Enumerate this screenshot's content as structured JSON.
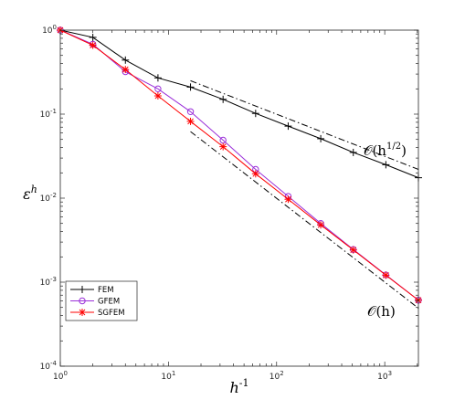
{
  "chart_data": {
    "type": "line",
    "xscale": "log",
    "yscale": "log",
    "xlim": [
      1,
      2048
    ],
    "ylim": [
      0.0001,
      1
    ],
    "xlabel_base": "h",
    "xlabel_exp": "-1",
    "ylabel_base": "ε",
    "ylabel_exp": "h",
    "x_ticks": [
      {
        "value": 1,
        "base": "10",
        "exp": "0"
      },
      {
        "value": 10,
        "base": "10",
        "exp": "1"
      },
      {
        "value": 100,
        "base": "10",
        "exp": "2"
      },
      {
        "value": 1000,
        "base": "10",
        "exp": "3"
      }
    ],
    "y_ticks": [
      {
        "value": 0.0001,
        "base": "10",
        "exp": "-4"
      },
      {
        "value": 0.001,
        "base": "10",
        "exp": "-3"
      },
      {
        "value": 0.01,
        "base": "10",
        "exp": "-2"
      },
      {
        "value": 0.1,
        "base": "10",
        "exp": "-1"
      },
      {
        "value": 1,
        "base": "10",
        "exp": "0"
      }
    ],
    "x": [
      1,
      2,
      4,
      8,
      16,
      32,
      64,
      128,
      256,
      512,
      1024,
      2048
    ],
    "series": [
      {
        "name": "FEM",
        "color": "#000000",
        "marker": "plus",
        "values": [
          1.0,
          0.82,
          0.44,
          0.27,
          0.21,
          0.15,
          0.102,
          0.072,
          0.051,
          0.035,
          0.025,
          0.0175
        ]
      },
      {
        "name": "GFEM",
        "color": "#9b30d9",
        "marker": "circle",
        "values": [
          1.0,
          0.68,
          0.32,
          0.2,
          0.107,
          0.049,
          0.022,
          0.0105,
          0.005,
          0.00245,
          0.00122,
          0.00061
        ]
      },
      {
        "name": "SGFEM",
        "color": "#ff0000",
        "marker": "star",
        "values": [
          1.0,
          0.66,
          0.34,
          0.165,
          0.082,
          0.041,
          0.0195,
          0.0097,
          0.0048,
          0.00242,
          0.00121,
          0.00061
        ]
      }
    ],
    "reference_lines": [
      {
        "label": "O(h^{1/2})",
        "color": "#000000",
        "style": "dash-dot",
        "x": [
          16,
          2048
        ],
        "y": [
          0.25,
          0.022
        ]
      },
      {
        "label": "O(h)",
        "color": "#000000",
        "style": "dash-dot",
        "x": [
          16,
          2048
        ],
        "y": [
          0.062,
          0.00049
        ]
      }
    ],
    "annotations": [
      {
        "prefix": "𝒪(h",
        "sup": "1/2",
        "suffix": ")"
      },
      {
        "prefix": "𝒪(h)",
        "sup": "",
        "suffix": ""
      }
    ],
    "legend_position": "bottom-left",
    "grid": false
  }
}
